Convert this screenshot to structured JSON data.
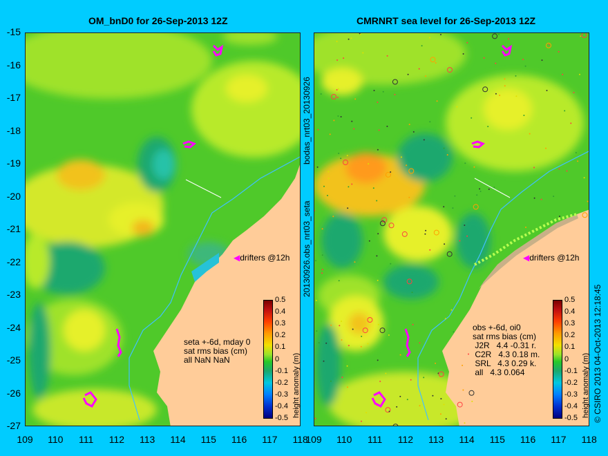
{
  "left_panel": {
    "title": "OM_bnD0 for 26-Sep-2013 12Z",
    "note_lines": [
      "seta +-6d, mday 0",
      "sat rms bias (cm)",
      "all NaN NaN"
    ]
  },
  "right_panel": {
    "title": "CMRNRT sea level  for 26-Sep-2013 12Z",
    "note_lines": [
      "obs +-6d, oi0",
      "sat rms bias (cm)",
      " J2R   4.4 -0.31 r.",
      " C2R   4.3 0.18 m.",
      " SRL   4.3 0.29 k.",
      " all   4.3 0.064"
    ],
    "drifters_label": "drifters @12h"
  },
  "left_drifters_label": "drifters @12h",
  "side_labels": {
    "middle_top": "bodas_nrt03_20130926",
    "middle_bottom": "20130926.obs_nrt03_seta",
    "right_edge": "© CSIRO 2013   04-Oct-2013 12:18:45"
  },
  "axes": {
    "y_ticks": [
      "-15",
      "-16",
      "-17",
      "-18",
      "-19",
      "-20",
      "-21",
      "-22",
      "-23",
      "-24",
      "-25",
      "-26",
      "-27"
    ],
    "x_ticks": [
      "109",
      "110",
      "111",
      "112",
      "113",
      "114",
      "115",
      "116",
      "117",
      "118"
    ],
    "x_ticks_right": [
      "109",
      "110",
      "111",
      "112",
      "113",
      "114",
      "115",
      "116",
      "117",
      "118"
    ]
  },
  "colorbar": {
    "label": "height anomaly (m)",
    "ticks": [
      "0.5",
      "0.4",
      "0.3",
      "0.2",
      "0.1",
      "0",
      "-0.1",
      "-0.2",
      "-0.3",
      "-0.4",
      "-0.5"
    ]
  },
  "colors": {
    "background": "#00ccff",
    "land": "#ffcc99",
    "drifter": "#ff00ff"
  }
}
